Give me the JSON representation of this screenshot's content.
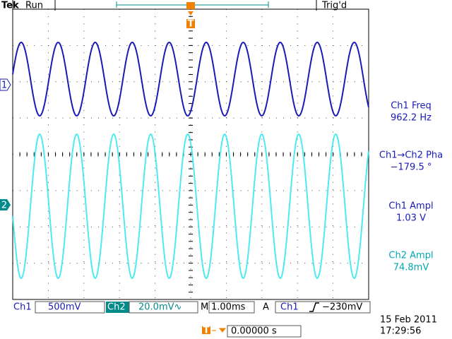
{
  "header": {
    "brand": "Tek",
    "state": "Run",
    "trigger_status": "Trig'd"
  },
  "channel_markers": [
    "1",
    "2"
  ],
  "measurements": [
    {
      "label": "Ch1 Freq",
      "value": "962.2 Hz"
    },
    {
      "label": "Ch1→Ch2 Pha",
      "value": "−179.5 °"
    },
    {
      "label": "Ch1 Ampl",
      "value": "1.03 V"
    },
    {
      "label": "Ch2 Ampl",
      "value": "74.8mV"
    }
  ],
  "channels": [
    {
      "label": "Ch1",
      "scale": "500mV"
    },
    {
      "label": "Ch2",
      "scale": "20.0mV∿"
    }
  ],
  "timebase": {
    "label": "M",
    "value": "1.00ms"
  },
  "trigger": {
    "mode": "A",
    "source": "Ch1",
    "level": "−230mV"
  },
  "date": "15 Feb 2011",
  "time": "17:29:56",
  "horizontal_position": "0.00000 s"
}
